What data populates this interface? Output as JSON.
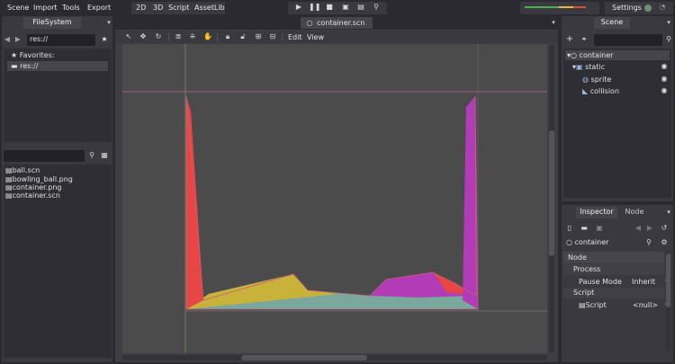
{
  "menu": {
    "scene": "Scene",
    "import": "Import",
    "tools": "Tools",
    "export": "Export"
  },
  "modes": {
    "m2d": "2D",
    "m3d": "3D",
    "script": "Script",
    "assetlib": "AssetLib"
  },
  "settings_label": "Settings",
  "filesystem": {
    "tab": "FileSystem",
    "path": "res://",
    "favorites_label": "Favorites:",
    "root_item": "res://",
    "files": [
      "ball.scn",
      "bowling_ball.png",
      "container.png",
      "container.scn"
    ]
  },
  "editor": {
    "scene_tab": "container.scn",
    "edit_menu": "Edit",
    "view_menu": "View"
  },
  "scene_panel": {
    "tab": "Scene",
    "tree": [
      {
        "name": "container",
        "icon": "node2d-icon"
      },
      {
        "name": "static",
        "icon": "static-body-icon"
      },
      {
        "name": "sprite",
        "icon": "sprite-icon"
      },
      {
        "name": "collision",
        "icon": "collision-polygon-icon"
      }
    ]
  },
  "inspector": {
    "tab": "Inspector",
    "node_tab": "Node",
    "object_name": "container",
    "section_node": "Node",
    "section_process": "Process",
    "pause_mode_label": "Pause Mode",
    "pause_mode_value": "Inherit",
    "section_script": "Script",
    "script_label": "Script",
    "script_value": "<null>"
  },
  "colors": {
    "bg": "#2b2a30",
    "panel": "#3a3940",
    "viewport": "#4b4b4b",
    "accent_red": "#e84545",
    "accent_magenta": "#b23cb8",
    "accent_yellow": "#c9b23a",
    "accent_teal": "#6fa79a"
  }
}
